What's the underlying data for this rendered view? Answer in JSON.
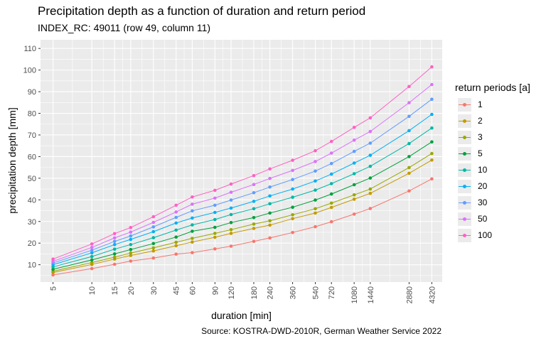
{
  "chart_data": {
    "type": "line",
    "title": "Precipitation depth as a function of duration and return period",
    "subtitle": "INDEX_RC: 49011 (row 49, column 11)",
    "xlabel": "duration [min]",
    "ylabel": "precipitation depth [mm]",
    "caption": "Source: KOSTRA-DWD-2010R, German Weather Service 2022",
    "legend_title": "return periods [a]",
    "legend_position": "right",
    "x_scale": "log",
    "x": [
      5,
      10,
      15,
      20,
      30,
      45,
      60,
      90,
      120,
      180,
      240,
      360,
      540,
      720,
      1080,
      1440,
      2880,
      4320
    ],
    "x_tick_labels": [
      "5",
      "10",
      "15",
      "20",
      "30",
      "45",
      "60",
      "90",
      "120",
      "180",
      "240",
      "360",
      "540",
      "720",
      "1080",
      "1440",
      "2880",
      "4320"
    ],
    "ylim": [
      2,
      114
    ],
    "y_ticks": [
      10,
      20,
      30,
      40,
      50,
      60,
      70,
      80,
      90,
      100,
      110
    ],
    "y_tick_labels": [
      "10",
      "20",
      "30",
      "40",
      "50",
      "60",
      "70",
      "80",
      "90",
      "100",
      "110"
    ],
    "grid": true,
    "series": [
      {
        "name": "1",
        "color": "#F8766D",
        "values": [
          5.3,
          8.2,
          10.2,
          11.7,
          13.1,
          14.9,
          15.6,
          17.3,
          18.6,
          20.8,
          22.4,
          24.9,
          27.6,
          29.9,
          33.4,
          36.0,
          44.1,
          49.7
        ]
      },
      {
        "name": "2",
        "color": "#C49A00",
        "values": [
          6.4,
          10.1,
          12.6,
          14.3,
          16.4,
          18.8,
          20.5,
          22.7,
          24.5,
          26.8,
          28.3,
          31.3,
          33.9,
          36.5,
          40.3,
          43.0,
          52.3,
          58.4
        ]
      },
      {
        "name": "3",
        "color": "#99A800",
        "values": [
          7.0,
          11.0,
          13.5,
          15.4,
          17.8,
          20.4,
          22.2,
          24.5,
          26.2,
          28.8,
          30.3,
          33.1,
          35.9,
          38.5,
          42.3,
          45.0,
          54.9,
          61.4
        ]
      },
      {
        "name": "5",
        "color": "#00A03C",
        "values": [
          7.9,
          12.2,
          15.0,
          17.0,
          19.8,
          22.8,
          25.5,
          27.3,
          29.5,
          31.8,
          33.9,
          36.6,
          39.9,
          42.7,
          47.0,
          50.1,
          60.0,
          66.8
        ]
      },
      {
        "name": "10",
        "color": "#00B8A5",
        "values": [
          9.0,
          13.8,
          17.2,
          19.3,
          22.5,
          26.0,
          28.4,
          30.9,
          33.2,
          35.9,
          38.2,
          41.2,
          44.5,
          47.5,
          52.1,
          55.5,
          66.0,
          73.2
        ]
      },
      {
        "name": "20",
        "color": "#00B0F6",
        "values": [
          10.0,
          15.5,
          19.3,
          21.7,
          25.3,
          29.3,
          31.6,
          34.2,
          36.2,
          39.3,
          41.8,
          45.0,
          48.7,
          51.9,
          57.0,
          60.6,
          72.0,
          79.5
        ]
      },
      {
        "name": "30",
        "color": "#619CFF",
        "values": [
          10.8,
          16.7,
          20.8,
          23.3,
          27.5,
          31.9,
          34.9,
          37.5,
          39.9,
          43.3,
          45.9,
          49.4,
          53.3,
          56.8,
          62.4,
          66.2,
          78.6,
          86.5
        ]
      },
      {
        "name": "50",
        "color": "#DB72FB",
        "values": [
          11.6,
          18.0,
          22.4,
          25.1,
          29.6,
          34.4,
          38.0,
          40.8,
          43.5,
          47.1,
          49.9,
          53.6,
          57.7,
          61.6,
          67.6,
          71.6,
          84.9,
          93.3
        ]
      },
      {
        "name": "100",
        "color": "#FF61C3",
        "values": [
          12.6,
          19.6,
          24.4,
          27.2,
          32.2,
          37.5,
          41.3,
          44.4,
          47.3,
          51.2,
          54.3,
          58.3,
          62.7,
          67.0,
          73.5,
          77.9,
          92.4,
          101.5
        ]
      }
    ]
  }
}
